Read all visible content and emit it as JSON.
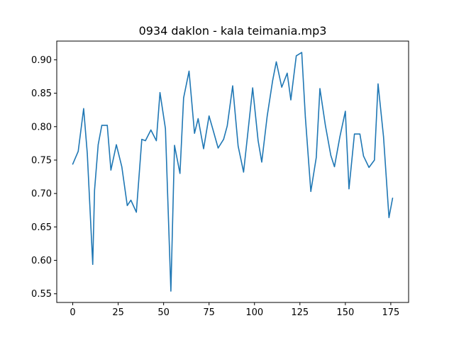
{
  "chart_data": {
    "type": "line",
    "title": "0934 daklon - kala teimania.mp3",
    "xlabel": "",
    "ylabel": "",
    "xlim": [
      -8.8,
      184.8
    ],
    "ylim": [
      0.537,
      0.928
    ],
    "x_ticks": [
      0,
      25,
      50,
      75,
      100,
      125,
      150,
      175
    ],
    "x_tick_labels": [
      "0",
      "25",
      "50",
      "75",
      "100",
      "125",
      "150",
      "175"
    ],
    "y_ticks": [
      0.55,
      0.6,
      0.65,
      0.7,
      0.75,
      0.8,
      0.85,
      0.9
    ],
    "y_tick_labels": [
      "0.55",
      "0.60",
      "0.65",
      "0.70",
      "0.75",
      "0.80",
      "0.85",
      "0.90"
    ],
    "grid": false,
    "series": [
      {
        "color": "#1f77b4",
        "x": [
          0,
          3,
          6,
          8,
          11,
          12,
          14,
          16,
          19,
          21,
          24,
          27,
          30,
          32,
          35,
          38,
          40,
          43,
          46,
          48,
          51,
          54,
          56,
          59,
          61,
          64,
          67,
          69,
          72,
          75,
          77,
          80,
          83,
          85,
          88,
          91,
          94,
          96,
          99,
          102,
          104,
          107,
          110,
          112,
          115,
          118,
          120,
          123,
          126,
          128,
          131,
          134,
          136,
          139,
          142,
          144,
          147,
          150,
          152,
          155,
          158,
          160,
          163,
          166,
          168,
          171,
          174,
          176
        ],
        "y": [
          0.744,
          0.763,
          0.827,
          0.76,
          0.594,
          0.705,
          0.773,
          0.802,
          0.802,
          0.735,
          0.773,
          0.74,
          0.682,
          0.69,
          0.672,
          0.781,
          0.779,
          0.795,
          0.779,
          0.851,
          0.797,
          0.554,
          0.772,
          0.73,
          0.843,
          0.883,
          0.79,
          0.812,
          0.767,
          0.816,
          0.797,
          0.768,
          0.781,
          0.801,
          0.861,
          0.771,
          0.732,
          0.782,
          0.858,
          0.779,
          0.747,
          0.816,
          0.869,
          0.897,
          0.859,
          0.88,
          0.84,
          0.906,
          0.911,
          0.814,
          0.703,
          0.754,
          0.857,
          0.802,
          0.757,
          0.74,
          0.785,
          0.823,
          0.707,
          0.789,
          0.789,
          0.756,
          0.739,
          0.75,
          0.864,
          0.785,
          0.664,
          0.693
        ]
      }
    ]
  }
}
